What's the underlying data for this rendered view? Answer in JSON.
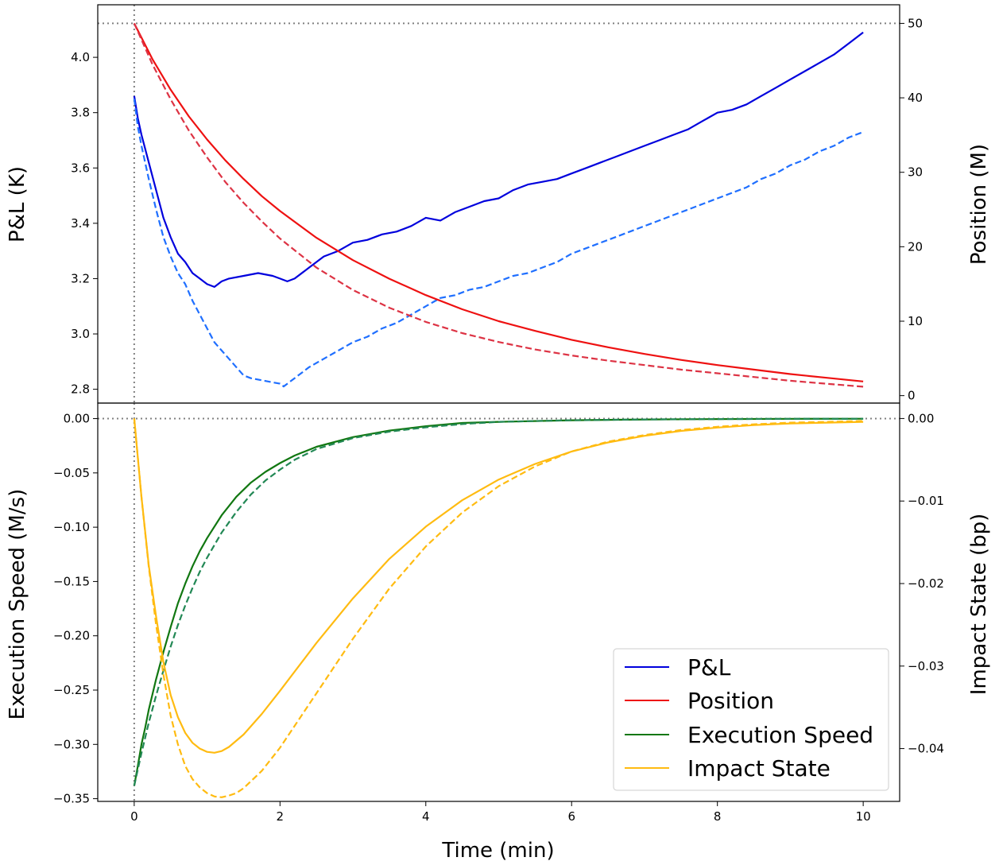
{
  "chart_data": [
    {
      "type": "line",
      "panel": "top",
      "xlabel": "",
      "ylabel": "P&L (K)",
      "y2label": "Position (M)",
      "xlim": [
        -0.5,
        10.5
      ],
      "ylim": [
        2.75,
        4.19
      ],
      "y2lim": [
        -1.0,
        52.5
      ],
      "xticks": [
        0,
        2,
        4,
        6,
        8,
        10
      ],
      "yticks": [
        {
          "value": 2.8,
          "label": "2.8"
        },
        {
          "value": 3.0,
          "label": "3.0"
        },
        {
          "value": 3.2,
          "label": "3.2"
        },
        {
          "value": 3.4,
          "label": "3.4"
        },
        {
          "value": 3.6,
          "label": "3.6"
        },
        {
          "value": 3.8,
          "label": "3.8"
        },
        {
          "value": 4.0,
          "label": "4.0"
        }
      ],
      "y2ticks": [
        {
          "value": 0,
          "label": "0"
        },
        {
          "value": 10,
          "label": "10"
        },
        {
          "value": 20,
          "label": "20"
        },
        {
          "value": 30,
          "label": "30"
        },
        {
          "value": 40,
          "label": "40"
        },
        {
          "value": 50,
          "label": "50"
        }
      ],
      "reference_lines": {
        "vertical_x": 0,
        "horizontal_y2": 50
      },
      "series": [
        {
          "name": "P&L",
          "axis": "left",
          "style": "solid",
          "color": "#0000dd",
          "x": [
            0,
            0.05,
            0.1,
            0.2,
            0.3,
            0.4,
            0.5,
            0.6,
            0.7,
            0.8,
            0.9,
            1.0,
            1.1,
            1.2,
            1.3,
            1.5,
            1.7,
            1.9,
            2.0,
            2.1,
            2.2,
            2.4,
            2.6,
            2.8,
            3.0,
            3.2,
            3.4,
            3.6,
            3.8,
            4.0,
            4.2,
            4.4,
            4.6,
            4.8,
            5.0,
            5.2,
            5.4,
            5.6,
            5.8,
            6.0,
            6.2,
            6.4,
            6.6,
            6.8,
            7.0,
            7.2,
            7.4,
            7.6,
            7.8,
            8.0,
            8.2,
            8.4,
            8.6,
            8.8,
            9.0,
            9.2,
            9.4,
            9.6,
            9.8,
            10.0
          ],
          "y": [
            3.86,
            3.78,
            3.72,
            3.62,
            3.52,
            3.42,
            3.35,
            3.29,
            3.26,
            3.22,
            3.2,
            3.18,
            3.17,
            3.19,
            3.2,
            3.21,
            3.22,
            3.21,
            3.2,
            3.19,
            3.2,
            3.24,
            3.28,
            3.3,
            3.33,
            3.34,
            3.36,
            3.37,
            3.39,
            3.42,
            3.41,
            3.44,
            3.46,
            3.48,
            3.49,
            3.52,
            3.54,
            3.55,
            3.56,
            3.58,
            3.6,
            3.62,
            3.64,
            3.66,
            3.68,
            3.7,
            3.72,
            3.74,
            3.77,
            3.8,
            3.81,
            3.83,
            3.86,
            3.89,
            3.92,
            3.95,
            3.98,
            4.01,
            4.05,
            4.09
          ]
        },
        {
          "name": "",
          "axis": "left",
          "style": "dashed",
          "color": "#1f6fff",
          "x": [
            0,
            0.05,
            0.1,
            0.2,
            0.3,
            0.4,
            0.5,
            0.6,
            0.7,
            0.8,
            0.9,
            1.0,
            1.1,
            1.2,
            1.3,
            1.4,
            1.5,
            1.6,
            1.8,
            2.0,
            2.05,
            2.2,
            2.4,
            2.6,
            2.8,
            3.0,
            3.2,
            3.4,
            3.6,
            3.8,
            4.0,
            4.2,
            4.4,
            4.6,
            4.8,
            5.0,
            5.2,
            5.4,
            5.6,
            5.8,
            6.0,
            6.2,
            6.4,
            6.6,
            6.8,
            7.0,
            7.2,
            7.4,
            7.6,
            7.8,
            8.0,
            8.2,
            8.4,
            8.6,
            8.8,
            9.0,
            9.2,
            9.4,
            9.6,
            9.8,
            10.0
          ],
          "y": [
            3.85,
            3.75,
            3.68,
            3.56,
            3.45,
            3.35,
            3.28,
            3.22,
            3.18,
            3.12,
            3.07,
            3.02,
            2.97,
            2.94,
            2.91,
            2.88,
            2.85,
            2.84,
            2.83,
            2.82,
            2.81,
            2.84,
            2.88,
            2.91,
            2.94,
            2.97,
            2.99,
            3.02,
            3.04,
            3.07,
            3.1,
            3.13,
            3.14,
            3.16,
            3.17,
            3.19,
            3.21,
            3.22,
            3.24,
            3.26,
            3.29,
            3.31,
            3.33,
            3.35,
            3.37,
            3.39,
            3.41,
            3.43,
            3.45,
            3.47,
            3.49,
            3.51,
            3.53,
            3.56,
            3.58,
            3.61,
            3.63,
            3.66,
            3.68,
            3.71,
            3.73
          ]
        },
        {
          "name": "Position",
          "axis": "right",
          "style": "solid",
          "color": "#ee1111",
          "x": [
            0,
            0.25,
            0.5,
            0.75,
            1.0,
            1.25,
            1.5,
            1.75,
            2.0,
            2.5,
            3.0,
            3.5,
            4.0,
            4.5,
            5.0,
            5.5,
            6.0,
            6.5,
            7.0,
            7.5,
            8.0,
            8.5,
            9.0,
            9.5,
            10.0
          ],
          "y": [
            50.0,
            45.2,
            41.1,
            37.5,
            34.4,
            31.6,
            29.1,
            26.8,
            24.8,
            21.2,
            18.2,
            15.7,
            13.5,
            11.6,
            10.0,
            8.7,
            7.5,
            6.5,
            5.6,
            4.8,
            4.1,
            3.5,
            2.9,
            2.4,
            1.9
          ]
        },
        {
          "name": "",
          "axis": "right",
          "style": "dashed",
          "color": "#dd3344",
          "x": [
            0,
            0.25,
            0.5,
            0.75,
            1.0,
            1.25,
            1.5,
            1.75,
            2.0,
            2.5,
            3.0,
            3.5,
            4.0,
            4.5,
            5.0,
            5.5,
            6.0,
            6.5,
            7.0,
            7.5,
            8.0,
            8.5,
            9.0,
            9.5,
            10.0
          ],
          "y": [
            50.0,
            44.5,
            39.8,
            35.6,
            32.0,
            28.7,
            25.9,
            23.4,
            21.1,
            17.2,
            14.2,
            11.8,
            9.9,
            8.4,
            7.2,
            6.2,
            5.4,
            4.7,
            4.1,
            3.5,
            3.0,
            2.5,
            2.0,
            1.6,
            1.2
          ]
        }
      ]
    },
    {
      "type": "line",
      "panel": "bottom",
      "xlabel": "Time (min)",
      "ylabel": "Execution Speed (M/s)",
      "y2label": "Impact State (bp)",
      "xlim": [
        -0.5,
        10.5
      ],
      "ylim": [
        -0.3525,
        0.0143
      ],
      "y2lim": [
        -0.0464,
        0.00187
      ],
      "xticks": [
        0,
        2,
        4,
        6,
        8,
        10
      ],
      "yticks": [
        {
          "value": 0.0,
          "label": "0.00"
        },
        {
          "value": -0.05,
          "label": "−0.05"
        },
        {
          "value": -0.1,
          "label": "−0.10"
        },
        {
          "value": -0.15,
          "label": "−0.15"
        },
        {
          "value": -0.2,
          "label": "−0.20"
        },
        {
          "value": -0.25,
          "label": "−0.25"
        },
        {
          "value": -0.3,
          "label": "−0.30"
        },
        {
          "value": -0.35,
          "label": "−0.35"
        }
      ],
      "y2ticks": [
        {
          "value": 0.0,
          "label": "0.00"
        },
        {
          "value": -0.01,
          "label": "−0.01"
        },
        {
          "value": -0.02,
          "label": "−0.02"
        },
        {
          "value": -0.03,
          "label": "−0.03"
        },
        {
          "value": -0.04,
          "label": "−0.04"
        }
      ],
      "reference_lines": {
        "vertical_x": 0,
        "horizontal_y": 0
      },
      "series": [
        {
          "name": "Execution Speed",
          "axis": "left",
          "style": "solid",
          "color": "#117711",
          "x": [
            0,
            0.05,
            0.1,
            0.15,
            0.2,
            0.3,
            0.4,
            0.5,
            0.6,
            0.7,
            0.8,
            0.9,
            1.0,
            1.2,
            1.4,
            1.6,
            1.8,
            2.0,
            2.2,
            2.5,
            3.0,
            3.5,
            4.0,
            4.5,
            5.0,
            6.0,
            7.0,
            8.0,
            9.0,
            10.0
          ],
          "y": [
            -0.338,
            -0.32,
            -0.3,
            -0.285,
            -0.268,
            -0.24,
            -0.215,
            -0.192,
            -0.17,
            -0.152,
            -0.136,
            -0.122,
            -0.11,
            -0.089,
            -0.072,
            -0.059,
            -0.049,
            -0.041,
            -0.034,
            -0.026,
            -0.017,
            -0.011,
            -0.007,
            -0.004,
            -0.003,
            -0.0015,
            -0.0008,
            -0.0004,
            -0.0002,
            -0.0001
          ]
        },
        {
          "name": "",
          "axis": "left",
          "style": "dashed",
          "color": "#228855",
          "x": [
            0,
            0.1,
            0.2,
            0.3,
            0.4,
            0.5,
            0.6,
            0.7,
            0.8,
            0.9,
            1.0,
            1.2,
            1.4,
            1.6,
            1.8,
            2.0,
            2.2,
            2.5,
            3.0,
            3.5,
            4.0,
            4.5,
            5.0,
            6.0,
            7.0,
            8.0,
            9.0,
            10.0
          ],
          "y": [
            -0.338,
            -0.308,
            -0.28,
            -0.255,
            -0.232,
            -0.21,
            -0.19,
            -0.172,
            -0.156,
            -0.141,
            -0.128,
            -0.105,
            -0.086,
            -0.07,
            -0.057,
            -0.047,
            -0.038,
            -0.028,
            -0.018,
            -0.012,
            -0.008,
            -0.005,
            -0.003,
            -0.0015,
            -0.0008,
            -0.0004,
            -0.0002,
            -0.0001
          ]
        },
        {
          "name": "Impact State",
          "axis": "right",
          "style": "solid",
          "color": "#ffbb11",
          "x": [
            0,
            0.1,
            0.2,
            0.3,
            0.4,
            0.5,
            0.6,
            0.7,
            0.8,
            0.9,
            1.0,
            1.1,
            1.2,
            1.3,
            1.5,
            1.75,
            2.0,
            2.5,
            3.0,
            3.5,
            4.0,
            4.5,
            5.0,
            5.5,
            6.0,
            6.5,
            7.0,
            7.5,
            8.0,
            8.5,
            9.0,
            9.5,
            10.0
          ],
          "y": [
            0.0,
            -0.0095,
            -0.0178,
            -0.024,
            -0.0295,
            -0.0335,
            -0.0362,
            -0.0381,
            -0.0393,
            -0.04,
            -0.0404,
            -0.0405,
            -0.0403,
            -0.0398,
            -0.0383,
            -0.0358,
            -0.033,
            -0.0272,
            -0.0218,
            -0.017,
            -0.0131,
            -0.0099,
            -0.0074,
            -0.0055,
            -0.004,
            -0.0029,
            -0.0021,
            -0.0015,
            -0.0011,
            -0.0008,
            -0.0006,
            -0.0005,
            -0.0004
          ]
        },
        {
          "name": "",
          "axis": "right",
          "style": "dashed",
          "color": "#ffbb11",
          "x": [
            0,
            0.1,
            0.2,
            0.3,
            0.4,
            0.5,
            0.6,
            0.7,
            0.8,
            0.9,
            1.0,
            1.1,
            1.2,
            1.3,
            1.4,
            1.5,
            1.75,
            2.0,
            2.5,
            3.0,
            3.5,
            4.0,
            4.5,
            5.0,
            5.5,
            6.0,
            6.5,
            7.0,
            7.5,
            8.0,
            8.5,
            9.0,
            9.5,
            10.0
          ],
          "y": [
            0.0,
            -0.0095,
            -0.018,
            -0.025,
            -0.031,
            -0.036,
            -0.0395,
            -0.0421,
            -0.0437,
            -0.0447,
            -0.0454,
            -0.0458,
            -0.0459,
            -0.0457,
            -0.0454,
            -0.0448,
            -0.0427,
            -0.0399,
            -0.0333,
            -0.0267,
            -0.0206,
            -0.0155,
            -0.0114,
            -0.0082,
            -0.0058,
            -0.004,
            -0.0028,
            -0.002,
            -0.0014,
            -0.001,
            -0.0007,
            -0.0005,
            -0.0004,
            -0.0003
          ]
        }
      ]
    }
  ],
  "legend": {
    "placement": "lower-right of bottom panel",
    "items": [
      {
        "label": "P&L",
        "color": "#0000dd"
      },
      {
        "label": "Position",
        "color": "#ee1111"
      },
      {
        "label": "Execution Speed",
        "color": "#117711"
      },
      {
        "label": "Impact State",
        "color": "#ffbb11"
      }
    ]
  }
}
